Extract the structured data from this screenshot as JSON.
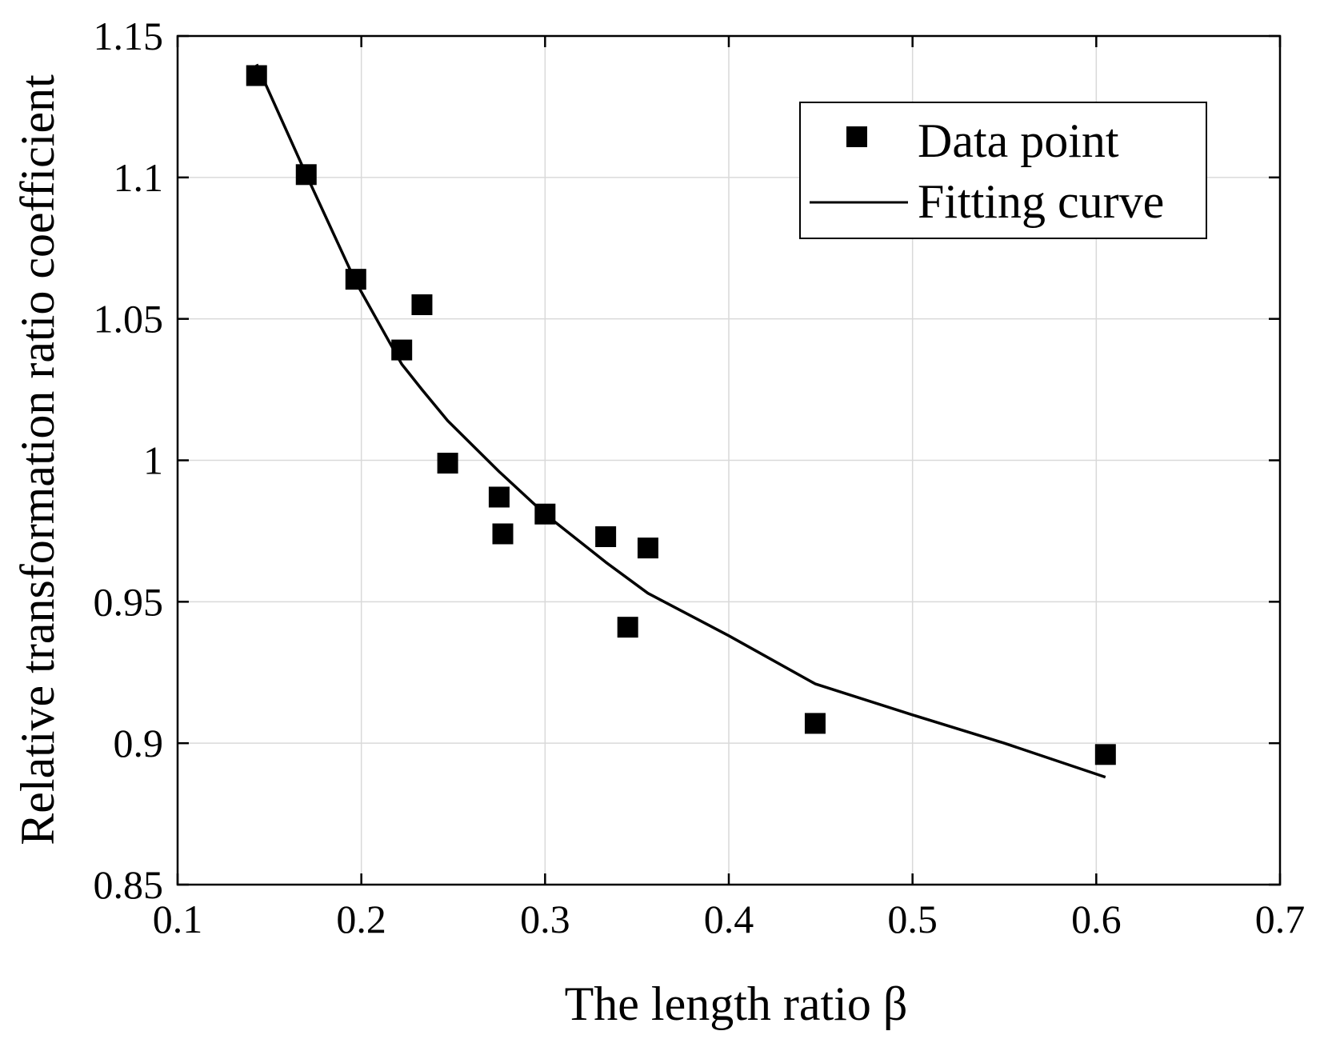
{
  "chart_data": {
    "type": "scatter",
    "title": "",
    "xlabel": "The length ratio β",
    "ylabel": "Relative transformation ratio coefficient",
    "xlim": [
      0.1,
      0.7
    ],
    "ylim": [
      0.85,
      1.15
    ],
    "grid": true,
    "x_ticks": [
      0.1,
      0.2,
      0.3,
      0.4,
      0.5,
      0.6,
      0.7
    ],
    "x_tick_labels": [
      "0.1",
      "0.2",
      "0.3",
      "0.4",
      "0.5",
      "0.6",
      "0.7"
    ],
    "y_ticks": [
      0.85,
      0.9,
      0.95,
      1.0,
      1.05,
      1.1,
      1.15
    ],
    "y_tick_labels": [
      "0.85",
      "0.9",
      "0.95",
      "1",
      "1.05",
      "1.1",
      "1.15"
    ],
    "legend": {
      "position": "top-right",
      "entries": [
        "Data point",
        "Fitting curve"
      ]
    },
    "series": [
      {
        "name": "Data point",
        "kind": "scatter",
        "marker": "square",
        "color": "#000000",
        "x": [
          0.143,
          0.17,
          0.197,
          0.222,
          0.233,
          0.247,
          0.275,
          0.277,
          0.3,
          0.333,
          0.345,
          0.356,
          0.447,
          0.605
        ],
        "y": [
          1.136,
          1.101,
          1.064,
          1.039,
          1.055,
          0.999,
          0.987,
          0.974,
          0.981,
          0.973,
          0.941,
          0.969,
          0.907,
          0.896
        ]
      },
      {
        "name": "Fitting curve",
        "kind": "line",
        "color": "#000000",
        "x": [
          0.143,
          0.17,
          0.197,
          0.222,
          0.233,
          0.247,
          0.275,
          0.3,
          0.333,
          0.356,
          0.4,
          0.447,
          0.5,
          0.55,
          0.605
        ],
        "y": [
          1.14,
          1.101,
          1.063,
          1.034,
          1.025,
          1.014,
          0.996,
          0.981,
          0.964,
          0.953,
          0.938,
          0.921,
          0.91,
          0.9,
          0.888
        ]
      }
    ]
  }
}
